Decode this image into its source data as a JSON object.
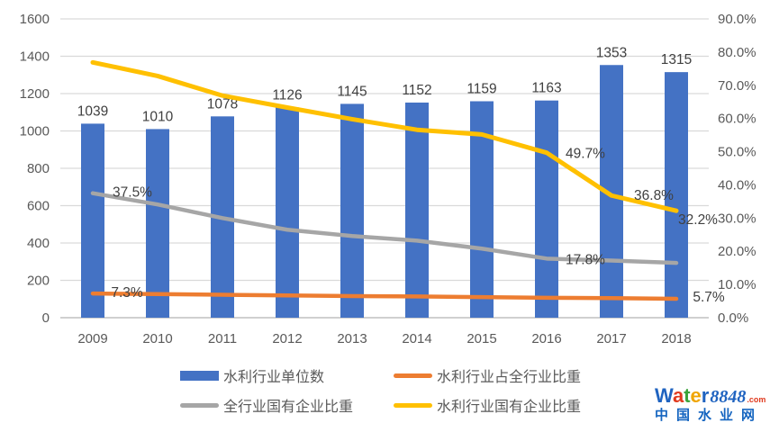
{
  "chart_data": {
    "type": "combo-bar-line",
    "categories": [
      "2009",
      "2010",
      "2011",
      "2012",
      "2013",
      "2014",
      "2015",
      "2016",
      "2017",
      "2018"
    ],
    "series": [
      {
        "name": "水利行业单位数",
        "type": "bar",
        "axis": "left",
        "color": "#4472C4",
        "values": [
          1039,
          1010,
          1078,
          1126,
          1145,
          1152,
          1159,
          1163,
          1353,
          1315
        ],
        "data_labels": [
          "1039",
          "1010",
          "1078",
          "1126",
          "1145",
          "1152",
          "1159",
          "1163",
          "1353",
          "1315"
        ]
      },
      {
        "name": "水利行业占全行业比重",
        "type": "line",
        "axis": "right",
        "color": "#ED7D31",
        "values": [
          7.3,
          7.1,
          6.9,
          6.7,
          6.5,
          6.4,
          6.2,
          6.0,
          5.9,
          5.7
        ],
        "point_labels": [
          {
            "index": 0,
            "text": "7.3%"
          },
          {
            "index": 9,
            "text": "5.7%"
          }
        ]
      },
      {
        "name": "全行业国有企业比重",
        "type": "line",
        "axis": "right",
        "color": "#A6A6A6",
        "values": [
          37.5,
          34.1,
          30.0,
          26.5,
          24.6,
          23.2,
          20.8,
          17.8,
          17.2,
          16.5
        ],
        "point_labels": [
          {
            "index": 0,
            "text": "37.5%"
          },
          {
            "index": 7,
            "text": "17.8%"
          }
        ]
      },
      {
        "name": "水利行业国有企业比重",
        "type": "line",
        "axis": "right",
        "color": "#FFC000",
        "values": [
          76.9,
          72.8,
          66.9,
          63.3,
          59.8,
          56.6,
          55.2,
          49.7,
          36.8,
          32.2
        ],
        "point_labels": [
          {
            "index": 7,
            "text": "49.7%"
          },
          {
            "index": 8,
            "text": "36.8%"
          },
          {
            "index": 9,
            "text": "32.2%"
          }
        ]
      }
    ],
    "left_axis": {
      "min": 0,
      "max": 1600,
      "ticks": [
        "0",
        "200",
        "400",
        "600",
        "800",
        "1000",
        "1200",
        "1400",
        "1600"
      ]
    },
    "right_axis": {
      "min": 0,
      "max": 90,
      "ticks": [
        "0.0%",
        "10.0%",
        "20.0%",
        "30.0%",
        "40.0%",
        "50.0%",
        "60.0%",
        "70.0%",
        "80.0%",
        "90.0%"
      ]
    },
    "grid": true,
    "legend_position": "bottom",
    "colors": {
      "gridline": "#D9D9D9",
      "axis_line": "#C0C0C0",
      "tick_label": "#595959",
      "data_label": "#404040"
    }
  },
  "legend": {
    "items": [
      {
        "label": "水利行业单位数",
        "swatch": "bar",
        "color": "#4472C4"
      },
      {
        "label": "水利行业占全行业比重",
        "swatch": "line",
        "color": "#ED7D31"
      },
      {
        "label": "全行业国有企业比重",
        "swatch": "line",
        "color": "#A6A6A6"
      },
      {
        "label": "水利行业国有企业比重",
        "swatch": "line",
        "color": "#FFC000"
      }
    ]
  },
  "logo": {
    "word_letters": [
      {
        "ch": "W",
        "color": "#1F63C0"
      },
      {
        "ch": "a",
        "color": "#E03A1E"
      },
      {
        "ch": "t",
        "color": "#3AA33A"
      },
      {
        "ch": "e",
        "color": "#F0A500"
      },
      {
        "ch": "r",
        "color": "#1F63C0"
      }
    ],
    "number": "8848",
    "number_color": "#1F63C0",
    "tld": ".com",
    "tld_color": "#E03A1E",
    "tagline": "中国水业网",
    "tagline_color": "#1565C0"
  }
}
